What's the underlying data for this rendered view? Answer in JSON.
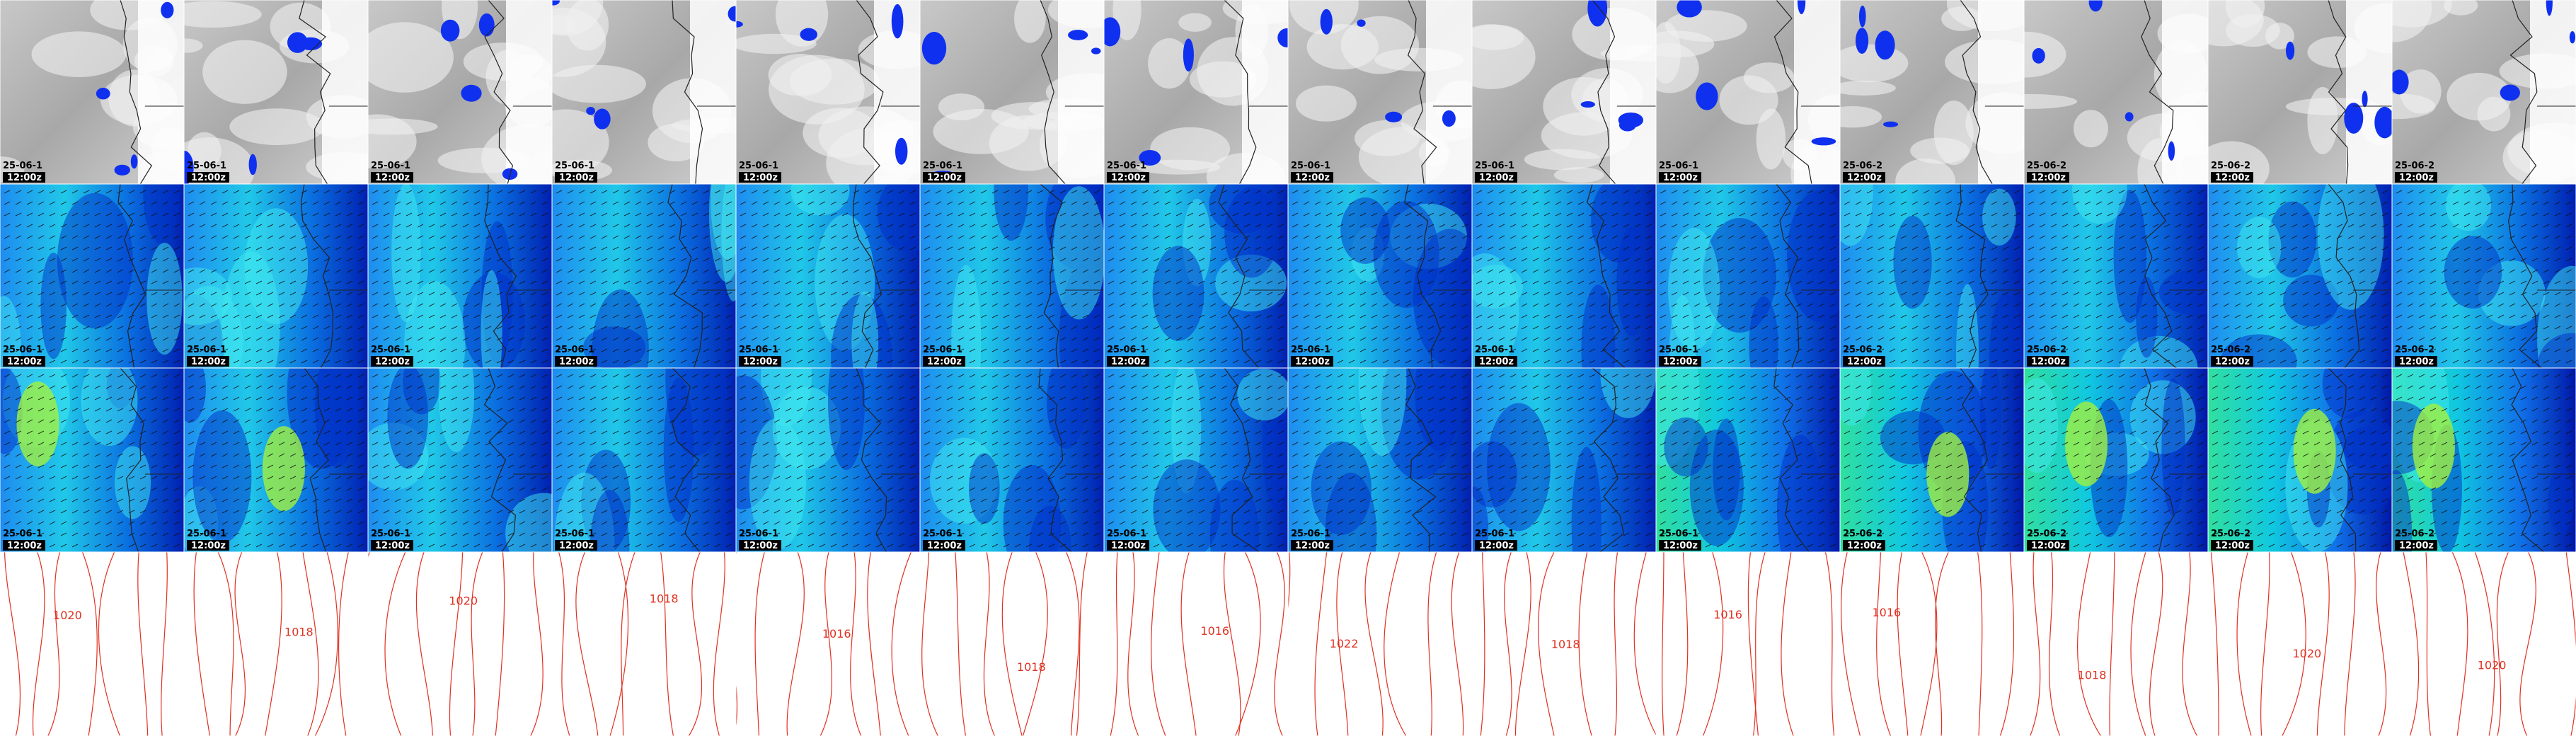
{
  "rows": [
    {
      "cells": [
        {
          "date": "25-06-1",
          "time": "12:00z"
        },
        {
          "date": "25-06-1",
          "time": "12:00z"
        },
        {
          "date": "25-06-1",
          "time": "12:00z"
        },
        {
          "date": "25-06-1",
          "time": "12:00z"
        },
        {
          "date": "25-06-1",
          "time": "12:00z"
        },
        {
          "date": "25-06-1",
          "time": "12:00z"
        },
        {
          "date": "25-06-1",
          "time": "12:00z"
        },
        {
          "date": "25-06-1",
          "time": "12:00z"
        },
        {
          "date": "25-06-1",
          "time": "12:00z"
        },
        {
          "date": "25-06-1",
          "time": "12:00z"
        },
        {
          "date": "25-06-2",
          "time": "12:00z"
        },
        {
          "date": "25-06-2",
          "time": "12:00z"
        },
        {
          "date": "25-06-2",
          "time": "12:00z"
        },
        {
          "date": "25-06-2",
          "time": "12:00z"
        }
      ]
    },
    {
      "cells": [
        {
          "date": "25-06-1",
          "time": "12:00z"
        },
        {
          "date": "25-06-1",
          "time": "12:00z"
        },
        {
          "date": "25-06-1",
          "time": "12:00z"
        },
        {
          "date": "25-06-1",
          "time": "12:00z"
        },
        {
          "date": "25-06-1",
          "time": "12:00z"
        },
        {
          "date": "25-06-1",
          "time": "12:00z"
        },
        {
          "date": "25-06-1",
          "time": "12:00z"
        },
        {
          "date": "25-06-1",
          "time": "12:00z"
        },
        {
          "date": "25-06-1",
          "time": "12:00z"
        },
        {
          "date": "25-06-1",
          "time": "12:00z"
        },
        {
          "date": "25-06-2",
          "time": "12:00z"
        },
        {
          "date": "25-06-2",
          "time": "12:00z"
        },
        {
          "date": "25-06-2",
          "time": "12:00z"
        },
        {
          "date": "25-06-2",
          "time": "12:00z"
        }
      ]
    },
    {
      "cells": [
        {
          "date": "25-06-1",
          "time": "12:00z"
        },
        {
          "date": "25-06-1",
          "time": "12:00z"
        },
        {
          "date": "25-06-1",
          "time": "12:00z"
        },
        {
          "date": "25-06-1",
          "time": "12:00z"
        },
        {
          "date": "25-06-1",
          "time": "12:00z"
        },
        {
          "date": "25-06-1",
          "time": "12:00z"
        },
        {
          "date": "25-06-1",
          "time": "12:00z"
        },
        {
          "date": "25-06-1",
          "time": "12:00z"
        },
        {
          "date": "25-06-1",
          "time": "12:00z"
        },
        {
          "date": "25-06-1",
          "time": "12:00z"
        },
        {
          "date": "25-06-2",
          "time": "12:00z"
        },
        {
          "date": "25-06-2",
          "time": "12:00z"
        },
        {
          "date": "25-06-2",
          "time": "12:00z"
        },
        {
          "date": "25-06-2",
          "time": "12:00z"
        }
      ]
    },
    {
      "cells": [
        {
          "contour": "1020"
        },
        {
          "contour": "1018"
        },
        {
          "contour": "1020"
        },
        {
          "contour": "1018"
        },
        {
          "contour": "1016"
        },
        {
          "contour": "1018"
        },
        {
          "contour": "1016"
        },
        {
          "contour": "1022"
        },
        {
          "contour": "1018"
        },
        {
          "contour": "1016"
        },
        {
          "contour": "1016"
        },
        {
          "contour": "1018"
        },
        {
          "contour": "1020"
        },
        {
          "contour": "1020"
        }
      ]
    }
  ]
}
